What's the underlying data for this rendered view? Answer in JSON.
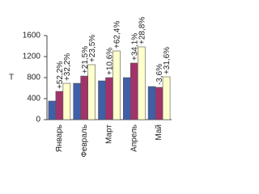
{
  "chart_data": {
    "type": "bar",
    "y_label": "Т",
    "categories": [
      "Январь",
      "Февраль",
      "Март",
      "Апрель",
      "Май"
    ],
    "series": [
      {
        "color": "#3f5fa8",
        "values": [
          354,
          692,
          738,
          800,
          630
        ]
      },
      {
        "color": "#a2336a",
        "values": [
          538,
          830,
          800,
          1077,
          615
        ]
      },
      {
        "color": "#ffffcc",
        "values": [
          692,
          1046,
          1308,
          1385,
          815
        ]
      }
    ],
    "annotations": [
      [
        "+52,2%",
        "+32,2%"
      ],
      [
        "+21,5%",
        "+23,5%"
      ],
      [
        "+10,6%",
        "+62,4%"
      ],
      [
        "+34,1%",
        "+28,8%"
      ],
      [
        "-3,6%",
        "+31,6%"
      ]
    ],
    "ylim": [
      0,
      1600
    ],
    "yticks": [
      0,
      400,
      800,
      1200,
      1600
    ],
    "grid": false
  }
}
